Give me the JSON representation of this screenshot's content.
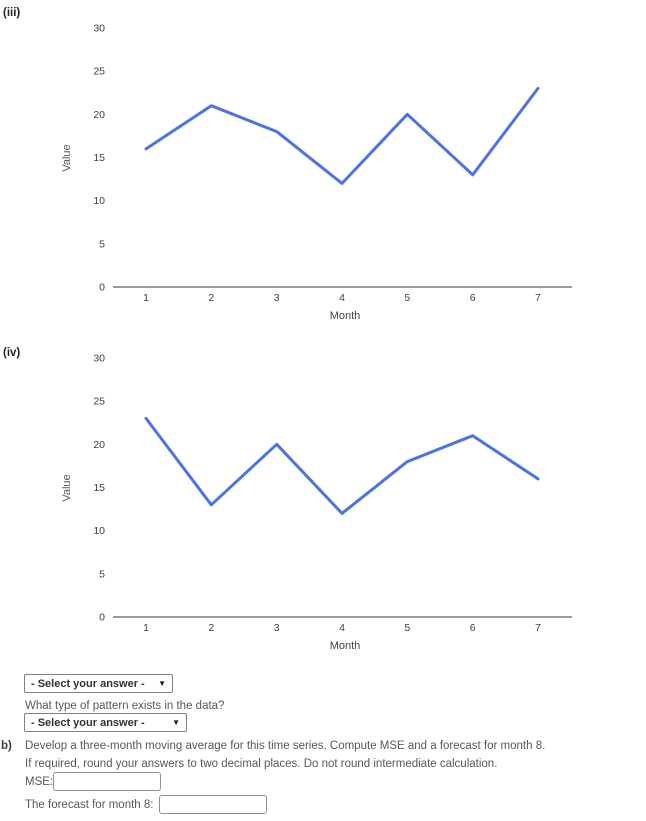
{
  "colors": {
    "line": "#4d72e4",
    "axis": "#9b9b9b",
    "tick_text": "#3f3f3f"
  },
  "icons": {
    "dropdown_arrow": "▼"
  },
  "chart_data": [
    {
      "type": "line",
      "panel_label": "(iii)",
      "x": [
        1,
        2,
        3,
        4,
        5,
        6,
        7
      ],
      "values": [
        16,
        21,
        18,
        12,
        20,
        13,
        23
      ],
      "title": "",
      "xlabel": "Month",
      "ylabel": "Value",
      "ylim": [
        0,
        30
      ],
      "yticks": [
        0,
        5,
        10,
        15,
        20,
        25,
        30
      ],
      "grid": false,
      "legend": "none"
    },
    {
      "type": "line",
      "panel_label": "(iv)",
      "x": [
        1,
        2,
        3,
        4,
        5,
        6,
        7
      ],
      "values": [
        23,
        13,
        20,
        12,
        18,
        21,
        16
      ],
      "title": "",
      "xlabel": "Month",
      "ylabel": "Value",
      "ylim": [
        0,
        30
      ],
      "yticks": [
        0,
        5,
        10,
        15,
        20,
        25,
        30
      ],
      "grid": false,
      "legend": "none"
    }
  ],
  "form": {
    "select_1": {
      "label": "- Select your answer -"
    },
    "question": "What type of pattern exists in the data?",
    "select_2": {
      "label": "- Select your answer -"
    },
    "part_b": {
      "marker": "b)",
      "instruction_line1": "Develop a three-month moving average for this time series. Compute MSE and a forecast for month 8.",
      "instruction_line2": "If required, round your answers to two decimal places. Do not round intermediate calculation.",
      "mse_label": "MSE:",
      "mse_value": "",
      "forecast_label": "The forecast for month 8:",
      "forecast_value": ""
    }
  }
}
